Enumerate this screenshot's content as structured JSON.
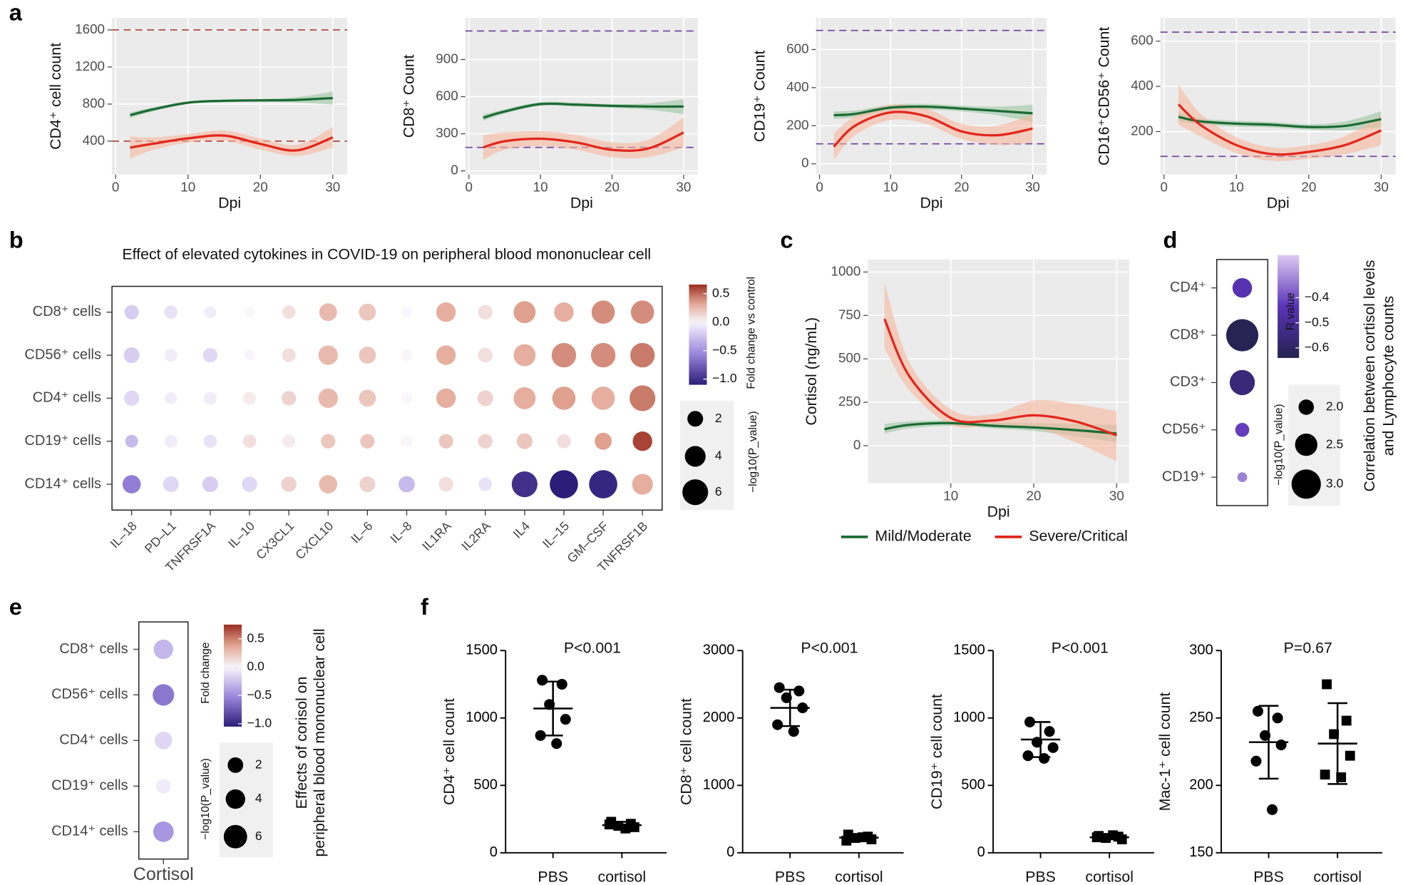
{
  "chart_data": [
    {
      "type": "line",
      "panel_label": "a",
      "ylabel": "CD4⁺ cell count",
      "xlabel": "Dpi",
      "xlim": [
        -0.5,
        32
      ],
      "xticks": [
        0,
        10,
        20,
        30
      ],
      "ylim": [
        40,
        1730
      ],
      "yticks": [
        400,
        800,
        1200,
        1600
      ],
      "ref_lines": [
        1600,
        400
      ],
      "ref_color": "#b03a2e",
      "x": [
        2,
        5,
        10,
        15,
        20,
        25,
        30
      ],
      "series": [
        {
          "color": "#1b6b34",
          "band_color": "#9cc7a4",
          "values": [
            680,
            740,
            815,
            835,
            840,
            845,
            865
          ],
          "lower": [
            650,
            718,
            800,
            820,
            825,
            815,
            795
          ],
          "upper": [
            710,
            762,
            830,
            850,
            855,
            875,
            935
          ]
        },
        {
          "color": "#e3261b",
          "band_color": "#f6b89e",
          "values": [
            330,
            370,
            430,
            460,
            370,
            300,
            440
          ],
          "lower": [
            210,
            300,
            385,
            405,
            310,
            240,
            330
          ],
          "upper": [
            450,
            440,
            475,
            515,
            430,
            360,
            550
          ]
        }
      ]
    },
    {
      "type": "line",
      "ylabel": "CD8⁺ Count",
      "xlabel": "Dpi",
      "xlim": [
        -0.5,
        32
      ],
      "xticks": [
        0,
        10,
        20,
        30
      ],
      "ylim": [
        -29,
        1236
      ],
      "yticks": [
        0,
        300,
        600,
        900
      ],
      "ref_lines": [
        1130,
        190
      ],
      "ref_color": "#6a3d9a",
      "x": [
        2,
        5,
        10,
        15,
        20,
        25,
        30
      ],
      "series": [
        {
          "color": "#1b6b34",
          "band_color": "#9cc7a4",
          "values": [
            430,
            480,
            540,
            535,
            525,
            520,
            520
          ],
          "lower": [
            405,
            462,
            525,
            520,
            510,
            495,
            460
          ],
          "upper": [
            455,
            498,
            555,
            550,
            540,
            545,
            580
          ]
        },
        {
          "color": "#e3261b",
          "band_color": "#f6b89e",
          "values": [
            190,
            240,
            260,
            230,
            170,
            180,
            310
          ],
          "lower": [
            90,
            170,
            200,
            170,
            110,
            110,
            190
          ],
          "upper": [
            290,
            310,
            320,
            290,
            230,
            250,
            430
          ]
        }
      ]
    },
    {
      "type": "line",
      "ylabel": "CD19⁺ Count",
      "xlabel": "Dpi",
      "xlim": [
        -0.5,
        32
      ],
      "xticks": [
        0,
        10,
        20,
        30
      ],
      "ylim": [
        -56,
        766
      ],
      "yticks": [
        0,
        200,
        400,
        600
      ],
      "ref_lines": [
        700,
        105
      ],
      "ref_color": "#6a3d9a",
      "x": [
        2,
        5,
        10,
        15,
        20,
        25,
        30
      ],
      "series": [
        {
          "color": "#1b6b34",
          "band_color": "#9cc7a4",
          "values": [
            255,
            262,
            295,
            300,
            290,
            278,
            265
          ],
          "lower": [
            235,
            245,
            280,
            285,
            275,
            255,
            220
          ],
          "upper": [
            275,
            280,
            310,
            315,
            305,
            300,
            310
          ]
        },
        {
          "color": "#e3261b",
          "band_color": "#f6b89e",
          "values": [
            90,
            200,
            270,
            250,
            170,
            150,
            185
          ],
          "lower": [
            20,
            150,
            230,
            210,
            130,
            100,
            110
          ],
          "upper": [
            160,
            250,
            310,
            290,
            210,
            200,
            260
          ]
        }
      ]
    },
    {
      "type": "line",
      "ylabel": "CD16⁺CD56⁺ Count",
      "xlabel": "Dpi",
      "xlim": [
        -0.5,
        32
      ],
      "xticks": [
        0,
        10,
        20,
        30
      ],
      "ylim": [
        10,
        703
      ],
      "yticks": [
        200,
        400,
        600
      ],
      "ref_lines": [
        640,
        90
      ],
      "ref_color": "#6a3d9a",
      "x": [
        2,
        5,
        10,
        15,
        20,
        25,
        30
      ],
      "series": [
        {
          "color": "#1b6b34",
          "band_color": "#9cc7a4",
          "values": [
            265,
            245,
            235,
            230,
            220,
            225,
            255
          ],
          "lower": [
            245,
            232,
            222,
            218,
            208,
            205,
            220
          ],
          "upper": [
            285,
            258,
            248,
            242,
            232,
            245,
            290
          ]
        },
        {
          "color": "#e3261b",
          "band_color": "#f6b89e",
          "values": [
            320,
            230,
            140,
            100,
            110,
            140,
            205
          ],
          "lower": [
            230,
            180,
            105,
            70,
            80,
            100,
            140
          ],
          "upper": [
            410,
            280,
            175,
            130,
            140,
            180,
            270
          ]
        }
      ]
    },
    {
      "type": "dotplot",
      "panel_label": "b",
      "title": "Effect of elevated cytokines in COVID-19 on peripheral blood mononuclear cell",
      "rows": [
        "CD8⁺ cells",
        "CD56⁺ cells",
        "CD4⁺ cells",
        "CD19⁺ cells",
        "CD14⁺ cells"
      ],
      "columns": [
        "IL–18",
        "PD–L1",
        "TNFRSF1A",
        "IL–10",
        "CX3CL1",
        "CXCL10",
        "IL–6",
        "IL–8",
        "IL1RA",
        "IL2RA",
        "IL4",
        "IL–15",
        "GM–CSF",
        "TNFRSF1B"
      ],
      "color_values": [
        [
          -0.2,
          -0.1,
          -0.05,
          0,
          0.1,
          0.25,
          0.2,
          0,
          0.3,
          0.1,
          0.35,
          0.3,
          0.4,
          0.4
        ],
        [
          -0.2,
          -0.05,
          -0.15,
          0,
          0.1,
          0.25,
          0.2,
          0,
          0.3,
          0.1,
          0.3,
          0.4,
          0.4,
          0.45
        ],
        [
          -0.15,
          -0.05,
          -0.05,
          0.05,
          0.15,
          0.25,
          0.2,
          0,
          0.3,
          0.15,
          0.3,
          0.35,
          0.3,
          0.45
        ],
        [
          -0.3,
          -0.05,
          -0.1,
          0.1,
          0.05,
          0.2,
          0.2,
          0,
          0.2,
          0.15,
          0.2,
          0.1,
          0.35,
          0.6
        ],
        [
          -0.6,
          -0.15,
          -0.2,
          -0.15,
          0.15,
          0.25,
          0.15,
          -0.3,
          0.1,
          -0.1,
          -1.0,
          -1.1,
          -1.05,
          0.3
        ]
      ],
      "size_values": [
        [
          1.5,
          1.0,
          0.5,
          0,
          1.0,
          2.8,
          2.5,
          0,
          3.5,
          1.5,
          4.5,
          3.5,
          5,
          5
        ],
        [
          2,
          0.8,
          1.5,
          0,
          1.2,
          3.5,
          2.5,
          0.3,
          3.5,
          1.5,
          4.5,
          5.5,
          5.5,
          5.5
        ],
        [
          1.8,
          0.5,
          0.8,
          0.8,
          1.5,
          3.5,
          2.5,
          0.3,
          3.5,
          2,
          4.5,
          5,
          5,
          6
        ],
        [
          0.8,
          0.8,
          1.0,
          1.0,
          0.8,
          1.5,
          1.5,
          0.5,
          1.5,
          1.5,
          2,
          1.3,
          2.5,
          3.5
        ],
        [
          3,
          2,
          2,
          1.8,
          1.8,
          3,
          2,
          2.2,
          1.5,
          1,
          6,
          7,
          7,
          4
        ]
      ],
      "color_scale": "diverging",
      "color_label": "Fold change vs control",
      "colorlim": [
        -1.1,
        0.66
      ],
      "colorticks": [
        0.5,
        {
          "value": 0,
          "label": "0.0"
        },
        {
          "value": -0.5,
          "label": "−0.5"
        },
        {
          "value": -1,
          "label": "−1.0"
        }
      ],
      "size_label": "−log10(P_value)",
      "sizeticks": [
        2,
        4,
        6
      ]
    },
    {
      "type": "line",
      "panel_label": "c",
      "ylabel": "Cortisol (ng/mL)",
      "xlabel": "Dpi",
      "xlim": [
        0,
        31.5
      ],
      "xticks": [
        10,
        20,
        30
      ],
      "ylim": [
        -216,
        1072
      ],
      "yticks": [
        0,
        250,
        500,
        750,
        1000
      ],
      "legend": "bottom",
      "x": [
        2,
        5,
        10,
        15,
        20,
        25,
        30
      ],
      "series": [
        {
          "name": "Mild/Moderate",
          "color": "#1b6b34",
          "band_color": "#9cc7a4",
          "values": [
            95,
            120,
            130,
            115,
            105,
            90,
            70
          ],
          "lower": [
            70,
            100,
            115,
            100,
            85,
            55,
            20
          ],
          "upper": [
            125,
            140,
            145,
            135,
            130,
            125,
            120
          ]
        },
        {
          "name": "Severe/Critical",
          "color": "#e3261b",
          "band_color": "#f6b89e",
          "values": [
            730,
            400,
            160,
            145,
            175,
            140,
            60
          ],
          "lower": [
            560,
            320,
            120,
            115,
            105,
            20,
            -90
          ],
          "upper": [
            940,
            480,
            210,
            180,
            260,
            240,
            200
          ]
        }
      ]
    },
    {
      "type": "dotplot",
      "panel_label": "d",
      "rows": [
        "CD4⁺",
        "CD8⁺",
        "CD3⁺",
        "CD56⁺",
        "CD19⁺"
      ],
      "color_values": [
        [
          -0.45
        ],
        [
          -0.63
        ],
        [
          -0.56
        ],
        [
          -0.42
        ],
        [
          -0.33
        ]
      ],
      "size_values": [
        [
          2.3
        ],
        [
          3.2
        ],
        [
          2.7
        ],
        [
          1.9
        ],
        [
          1.6
        ]
      ],
      "color_scale": "sequential",
      "color_label": "R value",
      "colorlim": [
        -0.64,
        -0.23
      ],
      "colorticks": [
        {
          "value": -0.4,
          "label": "−0.4"
        },
        {
          "value": -0.5,
          "label": "−0.5"
        },
        {
          "value": -0.6,
          "label": "−0.6"
        }
      ],
      "size_label": "−log10(P_value)",
      "sizeticks": [
        {
          "value": 2,
          "label": "2.0"
        },
        2.5,
        {
          "value": 3,
          "label": "3.0"
        }
      ],
      "note_lines": [
        "Correlation between cortisol levels",
        "and Lymphocyte counts"
      ]
    },
    {
      "type": "dotplot",
      "panel_label": "e",
      "rows": [
        "CD8⁺ cells",
        "CD56⁺ cells",
        "CD4⁺ cells",
        "CD19⁺ cells",
        "CD14⁺ cells"
      ],
      "columns": [
        "Cortisol"
      ],
      "color_values": [
        [
          -0.3
        ],
        [
          -0.6
        ],
        [
          -0.15
        ],
        [
          -0.05
        ],
        [
          -0.45
        ]
      ],
      "size_values": [
        [
          4
        ],
        [
          5
        ],
        [
          3
        ],
        [
          1.5
        ],
        [
          4.5
        ]
      ],
      "color_scale": "diverging",
      "color_label": "Fold change",
      "colorlim": [
        -1.05,
        0.75
      ],
      "colorticks": [
        0.5,
        {
          "value": 0,
          "label": "0.0"
        },
        {
          "value": -0.5,
          "label": "−0.5"
        },
        {
          "value": -1,
          "label": "−1.0"
        }
      ],
      "size_label": "−log10(P_value)",
      "sizeticks": [
        2,
        4,
        6
      ],
      "note_lines": [
        "Effects of corisol on",
        "peripheral blood mononuclear cell"
      ]
    },
    {
      "type": "dot",
      "panel_label": "f",
      "title": "P<0.001",
      "ylabel": "CD4⁺ cell count",
      "categories": [
        "PBS",
        "cortisol"
      ],
      "markers": [
        "circle",
        "square"
      ],
      "ylim": [
        0,
        1500
      ],
      "yticks": [
        0,
        500,
        1000,
        1500
      ],
      "groups": [
        {
          "values": [
            1280,
            1250,
            1100,
            990,
            870,
            810
          ],
          "mean": 1070,
          "sd": 200
        },
        {
          "values": [
            230,
            215,
            200,
            190,
            210,
            180
          ],
          "mean": 205,
          "sd": 25
        }
      ]
    },
    {
      "type": "dot",
      "title": "P<0.001",
      "ylabel": "CD8⁺ cell count",
      "categories": [
        "PBS",
        "cortisol"
      ],
      "markers": [
        "circle",
        "square"
      ],
      "ylim": [
        0,
        3000
      ],
      "yticks": [
        0,
        1000,
        2000,
        3000
      ],
      "groups": [
        {
          "values": [
            2450,
            2400,
            2300,
            2150,
            1900,
            1800
          ],
          "mean": 2150,
          "sd": 270
        },
        {
          "values": [
            270,
            240,
            220,
            200,
            180,
            230
          ],
          "mean": 225,
          "sd": 30
        }
      ]
    },
    {
      "type": "dot",
      "title": "P<0.001",
      "ylabel": "CD19⁺ cell count",
      "categories": [
        "PBS",
        "cortisol"
      ],
      "markers": [
        "circle",
        "square"
      ],
      "ylim": [
        0,
        1500
      ],
      "yticks": [
        0,
        500,
        1000,
        1500
      ],
      "groups": [
        {
          "values": [
            970,
            900,
            820,
            780,
            720,
            700
          ],
          "mean": 840,
          "sd": 130
        },
        {
          "values": [
            125,
            120,
            110,
            100,
            115,
            130
          ],
          "mean": 115,
          "sd": 15
        }
      ]
    },
    {
      "type": "dot",
      "title": "P=0.67",
      "ylabel": "Mac-1⁺ cell count",
      "categories": [
        "PBS",
        "cortisol"
      ],
      "markers": [
        "circle",
        "square"
      ],
      "ylim": [
        150,
        300
      ],
      "yticks": [
        150,
        200,
        250,
        300
      ],
      "groups": [
        {
          "values": [
            255,
            250,
            237,
            230,
            218,
            182
          ],
          "mean": 232,
          "sd": 27
        },
        {
          "values": [
            275,
            248,
            238,
            222,
            208,
            206
          ],
          "mean": 231,
          "sd": 30
        }
      ]
    }
  ]
}
